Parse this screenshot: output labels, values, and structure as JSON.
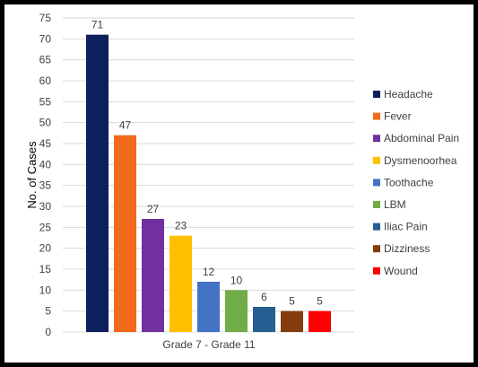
{
  "chart_data": {
    "type": "bar",
    "title": "",
    "xlabel": "Grade 7 - Grade 11",
    "ylabel": "No. of Cases",
    "ylim": [
      0,
      75
    ],
    "yticks": [
      0,
      5,
      10,
      15,
      20,
      25,
      30,
      35,
      40,
      45,
      50,
      55,
      60,
      65,
      70,
      75
    ],
    "grid": true,
    "legend_position": "right",
    "series": [
      {
        "name": "Headache",
        "value": 71,
        "color": "#0d1f5c"
      },
      {
        "name": "Fever",
        "value": 47,
        "color": "#f26b1d"
      },
      {
        "name": "Abdominal Pain",
        "value": 27,
        "color": "#7030a0"
      },
      {
        "name": "Dysmenoorhea",
        "value": 23,
        "color": "#ffc000"
      },
      {
        "name": "Toothache",
        "value": 12,
        "color": "#4472c4"
      },
      {
        "name": "LBM",
        "value": 10,
        "color": "#70ad47"
      },
      {
        "name": "Iliac Pain",
        "value": 6,
        "color": "#255e91"
      },
      {
        "name": "Dizziness",
        "value": 5,
        "color": "#843c0c"
      },
      {
        "name": "Wound",
        "value": 5,
        "color": "#ff0000"
      }
    ]
  }
}
